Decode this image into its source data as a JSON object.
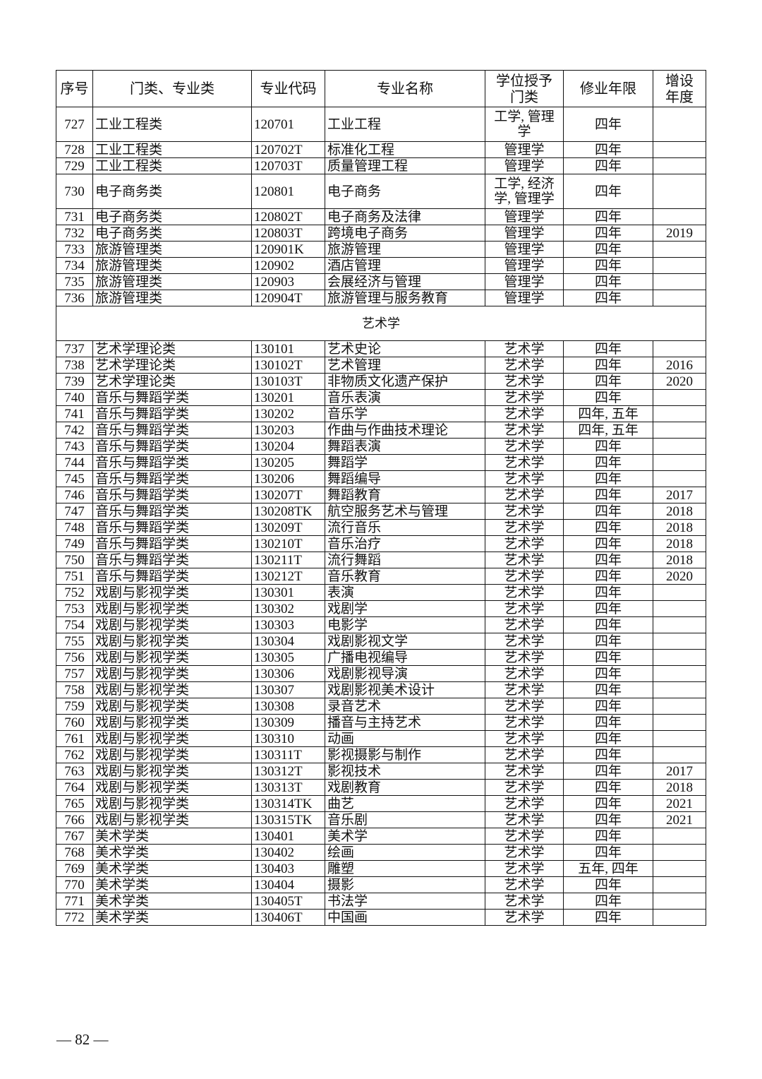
{
  "headers": [
    "序号",
    "门类、专业类",
    "专业代码",
    "专业名称",
    "学位授予门类",
    "修业年限",
    "增设年度"
  ],
  "rows_before": [
    [
      "727",
      "工业工程类",
      "120701",
      "工业工程",
      "工学, 管理学",
      "四年",
      ""
    ],
    [
      "728",
      "工业工程类",
      "120702T",
      "标准化工程",
      "管理学",
      "四年",
      ""
    ],
    [
      "729",
      "工业工程类",
      "120703T",
      "质量管理工程",
      "管理学",
      "四年",
      ""
    ],
    [
      "730",
      "电子商务类",
      "120801",
      "电子商务",
      "工学, 经济学, 管理学",
      "四年",
      ""
    ],
    [
      "731",
      "电子商务类",
      "120802T",
      "电子商务及法律",
      "管理学",
      "四年",
      ""
    ],
    [
      "732",
      "电子商务类",
      "120803T",
      "跨境电子商务",
      "管理学",
      "四年",
      "2019"
    ],
    [
      "733",
      "旅游管理类",
      "120901K",
      "旅游管理",
      "管理学",
      "四年",
      ""
    ],
    [
      "734",
      "旅游管理类",
      "120902",
      "酒店管理",
      "管理学",
      "四年",
      ""
    ],
    [
      "735",
      "旅游管理类",
      "120903",
      "会展经济与管理",
      "管理学",
      "四年",
      ""
    ],
    [
      "736",
      "旅游管理类",
      "120904T",
      "旅游管理与服务教育",
      "管理学",
      "四年",
      ""
    ]
  ],
  "section_title": "艺术学",
  "rows_after": [
    [
      "737",
      "艺术学理论类",
      "130101",
      "艺术史论",
      "艺术学",
      "四年",
      ""
    ],
    [
      "738",
      "艺术学理论类",
      "130102T",
      "艺术管理",
      "艺术学",
      "四年",
      "2016"
    ],
    [
      "739",
      "艺术学理论类",
      "130103T",
      "非物质文化遗产保护",
      "艺术学",
      "四年",
      "2020"
    ],
    [
      "740",
      "音乐与舞蹈学类",
      "130201",
      "音乐表演",
      "艺术学",
      "四年",
      ""
    ],
    [
      "741",
      "音乐与舞蹈学类",
      "130202",
      "音乐学",
      "艺术学",
      "四年, 五年",
      ""
    ],
    [
      "742",
      "音乐与舞蹈学类",
      "130203",
      "作曲与作曲技术理论",
      "艺术学",
      "四年, 五年",
      ""
    ],
    [
      "743",
      "音乐与舞蹈学类",
      "130204",
      "舞蹈表演",
      "艺术学",
      "四年",
      ""
    ],
    [
      "744",
      "音乐与舞蹈学类",
      "130205",
      "舞蹈学",
      "艺术学",
      "四年",
      ""
    ],
    [
      "745",
      "音乐与舞蹈学类",
      "130206",
      "舞蹈编导",
      "艺术学",
      "四年",
      ""
    ],
    [
      "746",
      "音乐与舞蹈学类",
      "130207T",
      "舞蹈教育",
      "艺术学",
      "四年",
      "2017"
    ],
    [
      "747",
      "音乐与舞蹈学类",
      "130208TK",
      "航空服务艺术与管理",
      "艺术学",
      "四年",
      "2018"
    ],
    [
      "748",
      "音乐与舞蹈学类",
      "130209T",
      "流行音乐",
      "艺术学",
      "四年",
      "2018"
    ],
    [
      "749",
      "音乐与舞蹈学类",
      "130210T",
      "音乐治疗",
      "艺术学",
      "四年",
      "2018"
    ],
    [
      "750",
      "音乐与舞蹈学类",
      "130211T",
      "流行舞蹈",
      "艺术学",
      "四年",
      "2018"
    ],
    [
      "751",
      "音乐与舞蹈学类",
      "130212T",
      "音乐教育",
      "艺术学",
      "四年",
      "2020"
    ],
    [
      "752",
      "戏剧与影视学类",
      "130301",
      "表演",
      "艺术学",
      "四年",
      ""
    ],
    [
      "753",
      "戏剧与影视学类",
      "130302",
      "戏剧学",
      "艺术学",
      "四年",
      ""
    ],
    [
      "754",
      "戏剧与影视学类",
      "130303",
      "电影学",
      "艺术学",
      "四年",
      ""
    ],
    [
      "755",
      "戏剧与影视学类",
      "130304",
      "戏剧影视文学",
      "艺术学",
      "四年",
      ""
    ],
    [
      "756",
      "戏剧与影视学类",
      "130305",
      "广播电视编导",
      "艺术学",
      "四年",
      ""
    ],
    [
      "757",
      "戏剧与影视学类",
      "130306",
      "戏剧影视导演",
      "艺术学",
      "四年",
      ""
    ],
    [
      "758",
      "戏剧与影视学类",
      "130307",
      "戏剧影视美术设计",
      "艺术学",
      "四年",
      ""
    ],
    [
      "759",
      "戏剧与影视学类",
      "130308",
      "录音艺术",
      "艺术学",
      "四年",
      ""
    ],
    [
      "760",
      "戏剧与影视学类",
      "130309",
      "播音与主持艺术",
      "艺术学",
      "四年",
      ""
    ],
    [
      "761",
      "戏剧与影视学类",
      "130310",
      "动画",
      "艺术学",
      "四年",
      ""
    ],
    [
      "762",
      "戏剧与影视学类",
      "130311T",
      "影视摄影与制作",
      "艺术学",
      "四年",
      ""
    ],
    [
      "763",
      "戏剧与影视学类",
      "130312T",
      "影视技术",
      "艺术学",
      "四年",
      "2017"
    ],
    [
      "764",
      "戏剧与影视学类",
      "130313T",
      "戏剧教育",
      "艺术学",
      "四年",
      "2018"
    ],
    [
      "765",
      "戏剧与影视学类",
      "130314TK",
      "曲艺",
      "艺术学",
      "四年",
      "2021"
    ],
    [
      "766",
      "戏剧与影视学类",
      "130315TK",
      "音乐剧",
      "艺术学",
      "四年",
      "2021"
    ],
    [
      "767",
      "美术学类",
      "130401",
      "美术学",
      "艺术学",
      "四年",
      ""
    ],
    [
      "768",
      "美术学类",
      "130402",
      "绘画",
      "艺术学",
      "四年",
      ""
    ],
    [
      "769",
      "美术学类",
      "130403",
      "雕塑",
      "艺术学",
      "五年, 四年",
      ""
    ],
    [
      "770",
      "美术学类",
      "130404",
      "摄影",
      "艺术学",
      "四年",
      ""
    ],
    [
      "771",
      "美术学类",
      "130405T",
      "书法学",
      "艺术学",
      "四年",
      ""
    ],
    [
      "772",
      "美术学类",
      "130406T",
      "中国画",
      "艺术学",
      "四年",
      ""
    ]
  ],
  "page_number": "— 82 —"
}
